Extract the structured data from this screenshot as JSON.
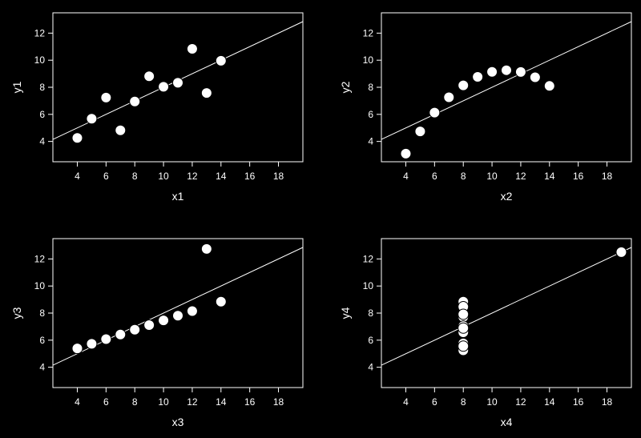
{
  "chart_data": [
    {
      "type": "scatter",
      "xlabel": "x1",
      "ylabel": "y1",
      "xlim": [
        2.3,
        19.7
      ],
      "ylim": [
        2.5,
        13.5
      ],
      "xticks": [
        4,
        6,
        8,
        10,
        12,
        14,
        16,
        18
      ],
      "yticks": [
        4,
        6,
        8,
        10,
        12
      ],
      "x": [
        10,
        8,
        13,
        9,
        11,
        14,
        6,
        4,
        12,
        7,
        5
      ],
      "y": [
        8.04,
        6.95,
        7.58,
        8.81,
        8.33,
        9.96,
        7.24,
        4.26,
        10.84,
        4.82,
        5.68
      ],
      "fit": {
        "intercept": 3.0,
        "slope": 0.5
      },
      "grid": false,
      "colors": {
        "background": "#000000",
        "foreground": "#ffffff"
      }
    },
    {
      "type": "scatter",
      "xlabel": "x2",
      "ylabel": "y2",
      "xlim": [
        2.3,
        19.7
      ],
      "ylim": [
        2.5,
        13.5
      ],
      "xticks": [
        4,
        6,
        8,
        10,
        12,
        14,
        16,
        18
      ],
      "yticks": [
        4,
        6,
        8,
        10,
        12
      ],
      "x": [
        10,
        8,
        13,
        9,
        11,
        14,
        6,
        4,
        12,
        7,
        5
      ],
      "y": [
        9.14,
        8.14,
        8.74,
        8.77,
        9.26,
        8.1,
        6.13,
        3.1,
        9.13,
        7.26,
        4.74
      ],
      "fit": {
        "intercept": 3.0,
        "slope": 0.5
      },
      "grid": false,
      "colors": {
        "background": "#000000",
        "foreground": "#ffffff"
      }
    },
    {
      "type": "scatter",
      "xlabel": "x3",
      "ylabel": "y3",
      "xlim": [
        2.3,
        19.7
      ],
      "ylim": [
        2.5,
        13.5
      ],
      "xticks": [
        4,
        6,
        8,
        10,
        12,
        14,
        16,
        18
      ],
      "yticks": [
        4,
        6,
        8,
        10,
        12
      ],
      "x": [
        10,
        8,
        13,
        9,
        11,
        14,
        6,
        4,
        12,
        7,
        5
      ],
      "y": [
        7.46,
        6.77,
        12.74,
        7.11,
        7.81,
        8.84,
        6.08,
        5.39,
        8.15,
        6.42,
        5.73
      ],
      "fit": {
        "intercept": 3.0,
        "slope": 0.5
      },
      "grid": false,
      "colors": {
        "background": "#000000",
        "foreground": "#ffffff"
      }
    },
    {
      "type": "scatter",
      "xlabel": "x4",
      "ylabel": "y4",
      "xlim": [
        2.3,
        19.7
      ],
      "ylim": [
        2.5,
        13.5
      ],
      "xticks": [
        4,
        6,
        8,
        10,
        12,
        14,
        16,
        18
      ],
      "yticks": [
        4,
        6,
        8,
        10,
        12
      ],
      "x": [
        8,
        8,
        8,
        8,
        8,
        8,
        8,
        19,
        8,
        8,
        8
      ],
      "y": [
        6.58,
        5.76,
        7.71,
        8.84,
        8.47,
        7.04,
        5.25,
        12.5,
        5.56,
        7.91,
        6.89
      ],
      "fit": {
        "intercept": 3.0,
        "slope": 0.5
      },
      "grid": false,
      "colors": {
        "background": "#000000",
        "foreground": "#ffffff"
      }
    }
  ]
}
